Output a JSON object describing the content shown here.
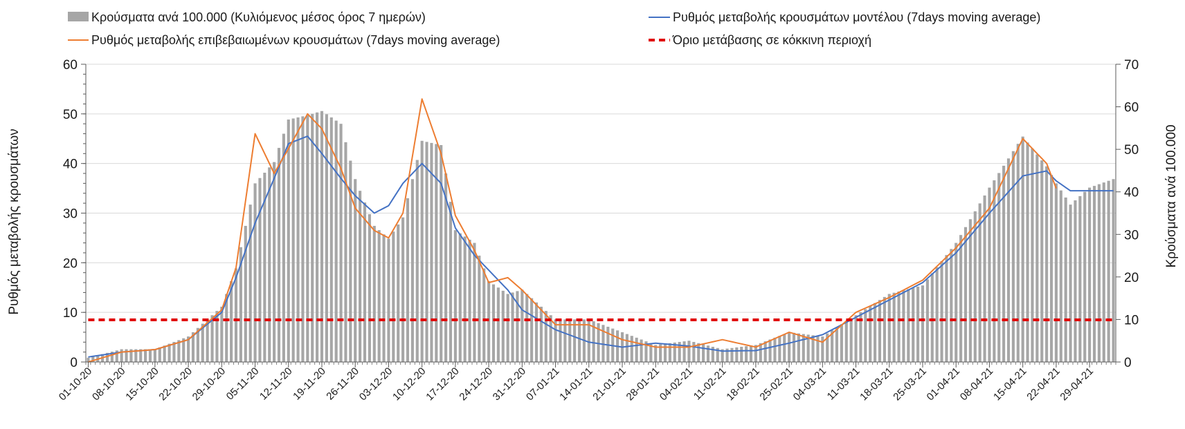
{
  "chart_data": {
    "type": "bar+line",
    "title": "",
    "xlabel": "",
    "ylabel_left": "Ρυθμός μεταβολής κρουσμάτων",
    "ylabel_right": "Κρούσματα ανά 100.000",
    "ylim_left": [
      0,
      60
    ],
    "ylim_right": [
      0,
      70
    ],
    "yticks_left": [
      "0",
      "10",
      "20",
      "30",
      "40",
      "50",
      "60"
    ],
    "yticks_right": [
      "0",
      "10",
      "20",
      "30",
      "40",
      "50",
      "60",
      "70"
    ],
    "grid": "horizontal",
    "legend_position": "top",
    "x_start": "2020-10-01",
    "x_end": "2021-05-04",
    "x_tick_labels": [
      "01-10-20",
      "08-10-20",
      "15-10-20",
      "22-10-20",
      "29-10-20",
      "05-11-20",
      "12-11-20",
      "19-11-20",
      "26-11-20",
      "03-12-20",
      "10-12-20",
      "17-12-20",
      "24-12-20",
      "31-12-20",
      "07-01-21",
      "14-01-21",
      "21-01-21",
      "28-01-21",
      "04-02-21",
      "11-02-21",
      "18-02-21",
      "25-02-21",
      "04-03-21",
      "11-03-21",
      "18-03-21",
      "25-03-21",
      "01-04-21",
      "08-04-21",
      "15-04-21",
      "22-04-21",
      "29-04-21"
    ],
    "series": [
      {
        "name": "Κρούσματα ανά 100.000 (Κυλιόμενος μέσος όρος 7 ημερών)",
        "type": "bar",
        "axis": "right",
        "color": "#a6a6a6",
        "x": [
          "2020-10-01",
          "2020-10-08",
          "2020-10-15",
          "2020-10-22",
          "2020-10-29",
          "2020-11-01",
          "2020-11-05",
          "2020-11-09",
          "2020-11-12",
          "2020-11-16",
          "2020-11-19",
          "2020-11-23",
          "2020-11-26",
          "2020-11-30",
          "2020-12-03",
          "2020-12-06",
          "2020-12-10",
          "2020-12-14",
          "2020-12-17",
          "2020-12-21",
          "2020-12-24",
          "2020-12-28",
          "2020-12-31",
          "2021-01-07",
          "2021-01-14",
          "2021-01-21",
          "2021-01-28",
          "2021-02-04",
          "2021-02-11",
          "2021-02-18",
          "2021-02-25",
          "2021-03-04",
          "2021-03-11",
          "2021-03-18",
          "2021-03-25",
          "2021-04-01",
          "2021-04-08",
          "2021-04-15",
          "2021-04-20",
          "2021-04-22",
          "2021-04-25",
          "2021-04-29",
          "2021-05-04"
        ],
        "values": [
          1,
          3,
          3,
          6,
          13,
          22,
          42,
          47,
          57,
          58,
          59,
          56,
          43,
          32,
          29,
          34,
          52,
          51,
          31,
          28,
          19,
          16,
          17,
          10,
          10,
          7,
          4,
          5,
          3,
          4,
          7,
          6,
          11,
          16,
          18,
          28,
          41,
          53,
          46,
          42,
          37,
          41,
          43
        ]
      },
      {
        "name": "Ρυθμός μεταβολής κρουσμάτων μοντέλου (7days moving average)",
        "type": "line",
        "axis": "left",
        "color": "#4472c4",
        "x": [
          "2020-10-01",
          "2020-10-08",
          "2020-10-15",
          "2020-10-22",
          "2020-10-29",
          "2020-11-01",
          "2020-11-05",
          "2020-11-09",
          "2020-11-12",
          "2020-11-16",
          "2020-11-19",
          "2020-11-23",
          "2020-11-26",
          "2020-11-30",
          "2020-12-03",
          "2020-12-06",
          "2020-12-10",
          "2020-12-14",
          "2020-12-17",
          "2020-12-21",
          "2020-12-24",
          "2020-12-28",
          "2020-12-31",
          "2021-01-07",
          "2021-01-14",
          "2021-01-21",
          "2021-01-28",
          "2021-02-04",
          "2021-02-11",
          "2021-02-18",
          "2021-02-25",
          "2021-03-04",
          "2021-03-11",
          "2021-03-18",
          "2021-03-25",
          "2021-04-01",
          "2021-04-08",
          "2021-04-15",
          "2021-04-20",
          "2021-04-22",
          "2021-04-25",
          "2021-04-29",
          "2021-05-04"
        ],
        "values": [
          1,
          2,
          2.5,
          4.5,
          10,
          17,
          28,
          37,
          44,
          45.5,
          42,
          37,
          33.5,
          30,
          31.5,
          36,
          40,
          36,
          27,
          21.5,
          18.5,
          14.5,
          10.5,
          6.5,
          4,
          3,
          3.8,
          3.2,
          2.2,
          2.3,
          3.8,
          5.5,
          9,
          12.5,
          16,
          22,
          30,
          37.5,
          38.5,
          36.5,
          34.5,
          34.5,
          34.5
        ]
      },
      {
        "name": "Ρυθμός μεταβολής επιβεβαιωμένων κρουσμάτων (7days moving average)",
        "type": "line",
        "axis": "left",
        "color": "#ed7d31",
        "x": [
          "2020-10-01",
          "2020-10-08",
          "2020-10-15",
          "2020-10-22",
          "2020-10-29",
          "2020-11-01",
          "2020-11-05",
          "2020-11-09",
          "2020-11-12",
          "2020-11-16",
          "2020-11-19",
          "2020-11-23",
          "2020-11-26",
          "2020-11-30",
          "2020-12-03",
          "2020-12-06",
          "2020-12-10",
          "2020-12-14",
          "2020-12-17",
          "2020-12-21",
          "2020-12-24",
          "2020-12-28",
          "2020-12-31",
          "2021-01-07",
          "2021-01-14",
          "2021-01-21",
          "2021-01-28",
          "2021-02-04",
          "2021-02-11",
          "2021-02-18",
          "2021-02-25",
          "2021-03-04",
          "2021-03-11",
          "2021-03-18",
          "2021-03-25",
          "2021-04-01",
          "2021-04-08",
          "2021-04-15",
          "2021-04-20",
          "2021-04-22"
        ],
        "values": [
          0,
          2,
          2.5,
          4.5,
          10.5,
          19,
          46,
          38,
          43,
          50,
          47,
          39,
          31,
          26.5,
          25,
          30,
          53,
          42,
          29.5,
          22.5,
          16,
          17,
          14.5,
          7.5,
          7.5,
          4.5,
          3,
          3,
          4.5,
          3,
          6,
          4,
          10,
          13,
          16.5,
          23,
          31,
          45,
          40,
          35
        ]
      },
      {
        "name": "Όριο μετάβασης σε κόκκινη περιοχή",
        "type": "line",
        "axis": "left",
        "color": "#e00000",
        "style": "dashed",
        "x": [
          "2020-10-01",
          "2021-05-04"
        ],
        "values": [
          8.5,
          8.5
        ]
      }
    ]
  }
}
